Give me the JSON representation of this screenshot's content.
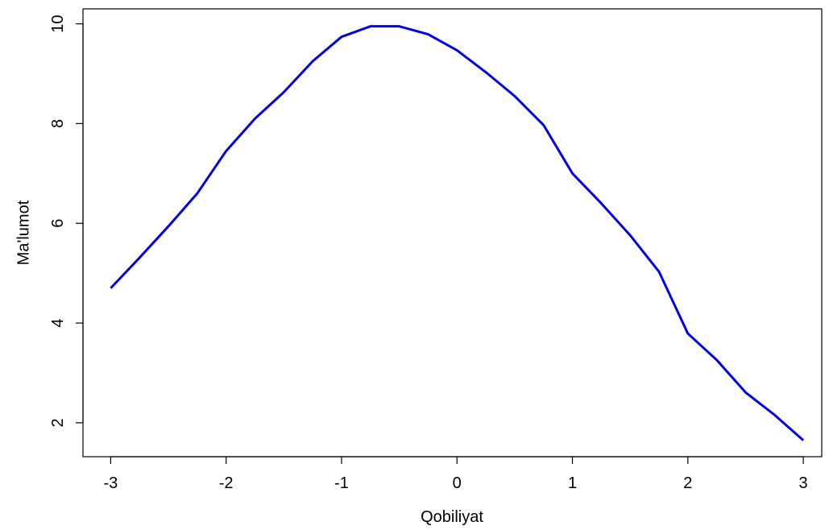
{
  "chart_data": {
    "type": "line",
    "xlabel": "Qobiliyat",
    "ylabel": "Ma'lumot",
    "x": [
      -3,
      -2.75,
      -2.5,
      -2.25,
      -2,
      -1.75,
      -1.5,
      -1.25,
      -1,
      -0.75,
      -0.5,
      -0.25,
      0,
      0.25,
      0.5,
      0.75,
      1,
      1.25,
      1.5,
      1.75,
      2,
      2.25,
      2.5,
      2.75,
      3
    ],
    "series": [
      {
        "color": "#0000ee",
        "values": [
          4.7,
          5.31,
          5.94,
          6.6,
          7.45,
          8.1,
          8.63,
          9.25,
          9.74,
          9.95,
          9.95,
          9.79,
          9.47,
          9.03,
          8.55,
          7.97,
          7.0,
          6.4,
          5.76,
          5.03,
          3.79,
          3.26,
          2.61,
          2.16,
          1.65
        ]
      }
    ],
    "xlim": [
      -3.24,
      3.16
    ],
    "ylim": [
      1.32,
      10.3
    ],
    "xticks": [
      -3,
      -2,
      -1,
      0,
      1,
      2,
      3
    ],
    "yticks": [
      2,
      4,
      6,
      8,
      10
    ]
  }
}
